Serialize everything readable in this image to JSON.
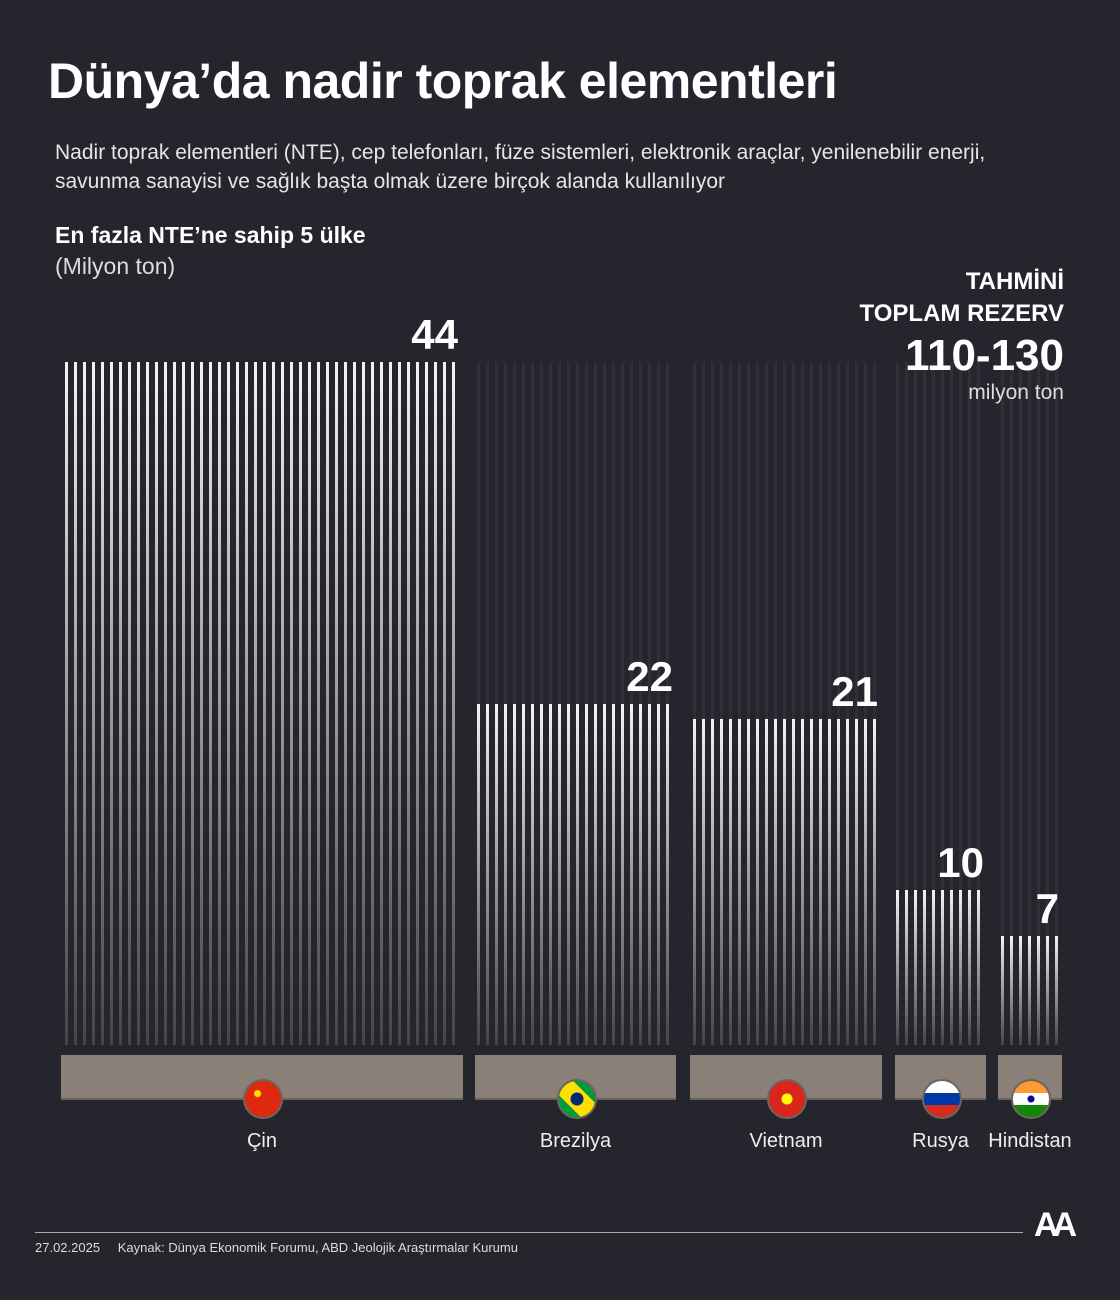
{
  "title": "Dünya’da nadir toprak elementleri",
  "subtitle": "Nadir toprak elementleri (NTE), cep telefonları, füze sistemleri, elektronik araçlar, yenilenebilir enerji, savunma sanayisi ve sağlık başta olmak üzere birçok alanda kullanılıyor",
  "total": {
    "label1": "TAHMİNİ",
    "label2": "TOPLAM REZERV",
    "value": "110-130",
    "unit": "milyon ton"
  },
  "chart_data": {
    "type": "bar",
    "title": "En fazla NTE’ne sahip 5 ülke",
    "ylabel": "(Milyon ton)",
    "categories": [
      "Çin",
      "Brezilya",
      "Vietnam",
      "Rusya",
      "Hindistan"
    ],
    "values": [
      44,
      22,
      21,
      10,
      7
    ],
    "ylim": [
      0,
      44
    ],
    "grid": false,
    "colors": {
      "bars": "#f2f2f2",
      "background": "#25252d",
      "plate": "#8a8078"
    }
  },
  "footer": {
    "date": "27.02.2025",
    "source": "Kaynak: Dünya Ekonomik Forumu, ABD Jeolojik Araştırmalar Kurumu",
    "logo": "AA"
  }
}
